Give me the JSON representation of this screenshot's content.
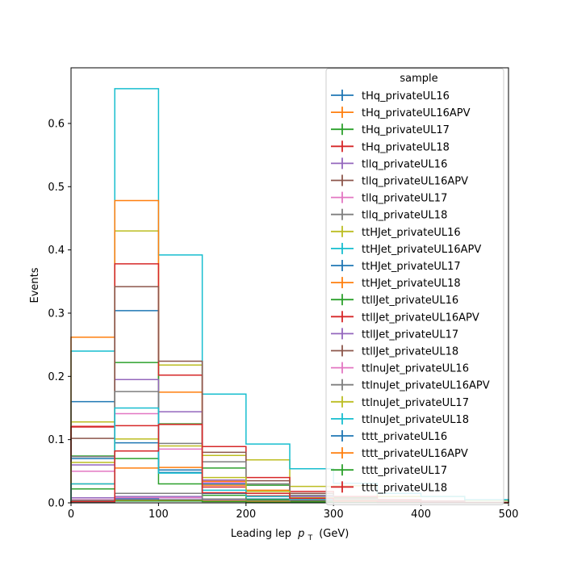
{
  "chart_data": {
    "type": "step-histogram",
    "xlabel": "Leading lep",
    "xlabel_sub": "T",
    "xlabel_unit": "(GeV)",
    "ylabel": "Events",
    "xlim": [
      0,
      500
    ],
    "ylim": [
      0,
      0.688
    ],
    "x_ticks": [
      0,
      100,
      200,
      300,
      400,
      500
    ],
    "y_ticks": [
      0.0,
      0.1,
      0.2,
      0.3,
      0.4,
      0.5,
      0.6
    ],
    "grid": false,
    "legend": {
      "title": "sample",
      "placement": "upper-right"
    },
    "bin_edges": [
      0,
      50,
      100,
      150,
      200,
      250,
      300,
      350,
      400,
      450,
      500
    ],
    "series": [
      {
        "name": "tHq_privateUL16",
        "color": "#1f77b4",
        "values": [
          0.16,
          0.304,
          0.048,
          0.015,
          0.006,
          0.003,
          0.002,
          0.001,
          0.001,
          0.0005
        ]
      },
      {
        "name": "tHq_privateUL16APV",
        "color": "#ff7f0e",
        "values": [
          0.03,
          0.055,
          0.056,
          0.028,
          0.011,
          0.004,
          0.002,
          0.001,
          0.001,
          0.0005
        ]
      },
      {
        "name": "tHq_privateUL17",
        "color": "#2ca02c",
        "values": [
          0.022,
          0.07,
          0.03,
          0.012,
          0.005,
          0.002,
          0.001,
          0.001,
          0.0005,
          0.0003
        ]
      },
      {
        "name": "tHq_privateUL18",
        "color": "#d62728",
        "values": [
          0.121,
          0.122,
          0.052,
          0.025,
          0.011,
          0.004,
          0.002,
          0.001,
          0.001,
          0.0005
        ]
      },
      {
        "name": "tllq_privateUL16",
        "color": "#9467bd",
        "values": [
          0.008,
          0.01,
          0.01,
          0.004,
          0.002,
          0.001,
          0.0005,
          0.0003,
          0.0002,
          0.0001
        ]
      },
      {
        "name": "tllq_privateUL16APV",
        "color": "#8c564b",
        "values": [
          0.003,
          0.003,
          0.003,
          0.002,
          0.001,
          0.0005,
          0.0003,
          0.0002,
          0.0001,
          0.0001
        ]
      },
      {
        "name": "tllq_privateUL17",
        "color": "#e377c2",
        "values": [
          0.005,
          0.008,
          0.008,
          0.003,
          0.002,
          0.001,
          0.0005,
          0.0003,
          0.0002,
          0.0001
        ]
      },
      {
        "name": "tllq_privateUL18",
        "color": "#7f7f7f",
        "values": [
          0.004,
          0.015,
          0.015,
          0.006,
          0.003,
          0.001,
          0.001,
          0.0005,
          0.0003,
          0.0002
        ]
      },
      {
        "name": "ttHJet_privateUL16",
        "color": "#bcbd22",
        "values": [
          0.128,
          0.43,
          0.218,
          0.075,
          0.068,
          0.026,
          0.027,
          0.01,
          0.01,
          0.004
        ]
      },
      {
        "name": "ttHJet_privateUL16APV",
        "color": "#17becf",
        "values": [
          0.24,
          0.655,
          0.392,
          0.172,
          0.093,
          0.054,
          0.031,
          0.015,
          0.01,
          0.005
        ]
      },
      {
        "name": "ttHJet_privateUL17",
        "color": "#1f77b4",
        "values": [
          0.07,
          0.095,
          0.052,
          0.03,
          0.015,
          0.008,
          0.004,
          0.002,
          0.001,
          0.0005
        ]
      },
      {
        "name": "ttHJet_privateUL18",
        "color": "#ff7f0e",
        "values": [
          0.262,
          0.478,
          0.175,
          0.034,
          0.02,
          0.008,
          0.004,
          0.002,
          0.001,
          0.0005
        ]
      },
      {
        "name": "ttllJet_privateUL16",
        "color": "#2ca02c",
        "values": [
          0.074,
          0.222,
          0.125,
          0.055,
          0.028,
          0.015,
          0.008,
          0.004,
          0.002,
          0.001
        ]
      },
      {
        "name": "ttllJet_privateUL16APV",
        "color": "#d62728",
        "values": [
          0.12,
          0.378,
          0.202,
          0.089,
          0.04,
          0.018,
          0.01,
          0.005,
          0.003,
          0.001
        ]
      },
      {
        "name": "ttllJet_privateUL17",
        "color": "#9467bd",
        "values": [
          0.06,
          0.195,
          0.144,
          0.036,
          0.015,
          0.01,
          0.005,
          0.002,
          0.001,
          0.0005
        ]
      },
      {
        "name": "ttllJet_privateUL18",
        "color": "#8c564b",
        "values": [
          0.102,
          0.342,
          0.224,
          0.08,
          0.035,
          0.015,
          0.007,
          0.003,
          0.002,
          0.001
        ]
      },
      {
        "name": "ttlnuJet_privateUL16",
        "color": "#e377c2",
        "values": [
          0.05,
          0.141,
          0.085,
          0.032,
          0.015,
          0.006,
          0.003,
          0.002,
          0.001,
          0.0005
        ]
      },
      {
        "name": "ttlnuJet_privateUL16APV",
        "color": "#7f7f7f",
        "values": [
          0.073,
          0.176,
          0.094,
          0.065,
          0.03,
          0.012,
          0.006,
          0.003,
          0.002,
          0.001
        ]
      },
      {
        "name": "ttlnuJet_privateUL17",
        "color": "#bcbd22",
        "values": [
          0.064,
          0.101,
          0.09,
          0.04,
          0.018,
          0.008,
          0.004,
          0.002,
          0.001,
          0.0005
        ]
      },
      {
        "name": "ttlnuJet_privateUL18",
        "color": "#17becf",
        "values": [
          0.03,
          0.15,
          0.047,
          0.02,
          0.01,
          0.005,
          0.003,
          0.001,
          0.001,
          0.0005
        ]
      },
      {
        "name": "tttt_privateUL16",
        "color": "#1f77b4",
        "values": [
          0.001,
          0.006,
          0.005,
          0.003,
          0.002,
          0.001,
          0.001,
          0.0005,
          0.0003,
          0.0002
        ]
      },
      {
        "name": "tttt_privateUL16APV",
        "color": "#ff7f0e",
        "values": [
          0.002,
          0.004,
          0.004,
          0.003,
          0.002,
          0.001,
          0.001,
          0.0005,
          0.0003,
          0.0002
        ]
      },
      {
        "name": "tttt_privateUL17",
        "color": "#2ca02c",
        "values": [
          0.002,
          0.003,
          0.003,
          0.002,
          0.001,
          0.001,
          0.0005,
          0.0003,
          0.0002,
          0.0001
        ]
      },
      {
        "name": "tttt_privateUL18",
        "color": "#d62728",
        "values": [
          0.002,
          0.082,
          0.124,
          0.016,
          0.015,
          0.007,
          0.003,
          0.002,
          0.001,
          0.0005
        ]
      }
    ]
  }
}
